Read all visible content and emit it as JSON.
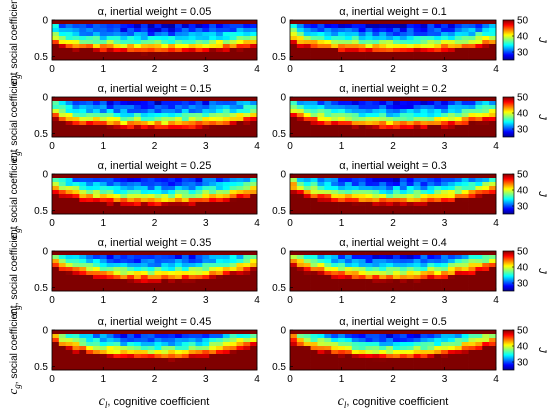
{
  "figure": {
    "ylabel_symbol": "c",
    "ylabel_sub": "g",
    "ylabel_text": ", social coefficient",
    "xlabel_symbol": "c",
    "xlabel_sub": "l",
    "xlabel_text": ", cognitive coefficient",
    "colorbar_label": "J"
  },
  "chart_data": [
    {
      "type": "heatmap",
      "title": "α, inertial weight = 0.05",
      "xlim": [
        0,
        4
      ],
      "ylim": [
        0,
        0.5
      ],
      "xticks": [
        "0",
        "1",
        "2",
        "3",
        "4"
      ],
      "yticks": [
        "0",
        "0.5"
      ],
      "clim": [
        25,
        50
      ],
      "cbar_ticks": [
        "30",
        "40",
        "50"
      ],
      "grid": false,
      "alpha": 0.05
    },
    {
      "type": "heatmap",
      "title": "α, inertial weight = 0.1",
      "xlim": [
        0,
        4
      ],
      "ylim": [
        0,
        0.5
      ],
      "xticks": [
        "0",
        "1",
        "2",
        "3",
        "4"
      ],
      "yticks": [
        "0",
        "0.5"
      ],
      "clim": [
        25,
        50
      ],
      "cbar_ticks": [
        "30",
        "40",
        "50"
      ],
      "grid": false,
      "alpha": 0.1
    },
    {
      "type": "heatmap",
      "title": "α, inertial weight = 0.15",
      "xlim": [
        0,
        4
      ],
      "ylim": [
        0,
        0.5
      ],
      "xticks": [
        "0",
        "1",
        "2",
        "3",
        "4"
      ],
      "yticks": [
        "0",
        "0.5"
      ],
      "clim": [
        25,
        50
      ],
      "cbar_ticks": [
        "30",
        "40",
        "50"
      ],
      "grid": false,
      "alpha": 0.15
    },
    {
      "type": "heatmap",
      "title": "α, inertial weight = 0.2",
      "xlim": [
        0,
        4
      ],
      "ylim": [
        0,
        0.5
      ],
      "xticks": [
        "0",
        "1",
        "2",
        "3",
        "4"
      ],
      "yticks": [
        "0",
        "0.5"
      ],
      "clim": [
        25,
        50
      ],
      "cbar_ticks": [
        "30",
        "40",
        "50"
      ],
      "grid": false,
      "alpha": 0.2
    },
    {
      "type": "heatmap",
      "title": "α, inertial weight = 0.25",
      "xlim": [
        0,
        4
      ],
      "ylim": [
        0,
        0.5
      ],
      "xticks": [
        "0",
        "1",
        "2",
        "3",
        "4"
      ],
      "yticks": [
        "0",
        "0.5"
      ],
      "clim": [
        25,
        50
      ],
      "cbar_ticks": [
        "30",
        "40",
        "50"
      ],
      "grid": false,
      "alpha": 0.25
    },
    {
      "type": "heatmap",
      "title": "α, inertial weight = 0.3",
      "xlim": [
        0,
        4
      ],
      "ylim": [
        0,
        0.5
      ],
      "xticks": [
        "0",
        "1",
        "2",
        "3",
        "4"
      ],
      "yticks": [
        "0",
        "0.5"
      ],
      "clim": [
        25,
        50
      ],
      "cbar_ticks": [
        "30",
        "40",
        "50"
      ],
      "grid": false,
      "alpha": 0.3
    },
    {
      "type": "heatmap",
      "title": "α, inertial weight = 0.35",
      "xlim": [
        0,
        4
      ],
      "ylim": [
        0,
        0.5
      ],
      "xticks": [
        "0",
        "1",
        "2",
        "3",
        "4"
      ],
      "yticks": [
        "0",
        "0.5"
      ],
      "clim": [
        25,
        50
      ],
      "cbar_ticks": [
        "30",
        "40",
        "50"
      ],
      "grid": false,
      "alpha": 0.35
    },
    {
      "type": "heatmap",
      "title": "α, inertial weight = 0.4",
      "xlim": [
        0,
        4
      ],
      "ylim": [
        0,
        0.5
      ],
      "xticks": [
        "0",
        "1",
        "2",
        "3",
        "4"
      ],
      "yticks": [
        "0",
        "0.5"
      ],
      "clim": [
        25,
        50
      ],
      "cbar_ticks": [
        "30",
        "40",
        "50"
      ],
      "grid": false,
      "alpha": 0.4
    },
    {
      "type": "heatmap",
      "title": "α, inertial weight = 0.45",
      "xlim": [
        0,
        4
      ],
      "ylim": [
        0,
        0.5
      ],
      "xticks": [
        "0",
        "1",
        "2",
        "3",
        "4"
      ],
      "yticks": [
        "0",
        "0.5"
      ],
      "clim": [
        25,
        50
      ],
      "cbar_ticks": [
        "30",
        "40",
        "50"
      ],
      "grid": false,
      "alpha": 0.45
    },
    {
      "type": "heatmap",
      "title": "α, inertial weight = 0.5",
      "xlim": [
        0,
        4
      ],
      "ylim": [
        0,
        0.5
      ],
      "xticks": [
        "0",
        "1",
        "2",
        "3",
        "4"
      ],
      "yticks": [
        "0",
        "0.5"
      ],
      "clim": [
        25,
        50
      ],
      "cbar_ticks": [
        "30",
        "40",
        "50"
      ],
      "grid": false,
      "alpha": 0.5
    }
  ]
}
